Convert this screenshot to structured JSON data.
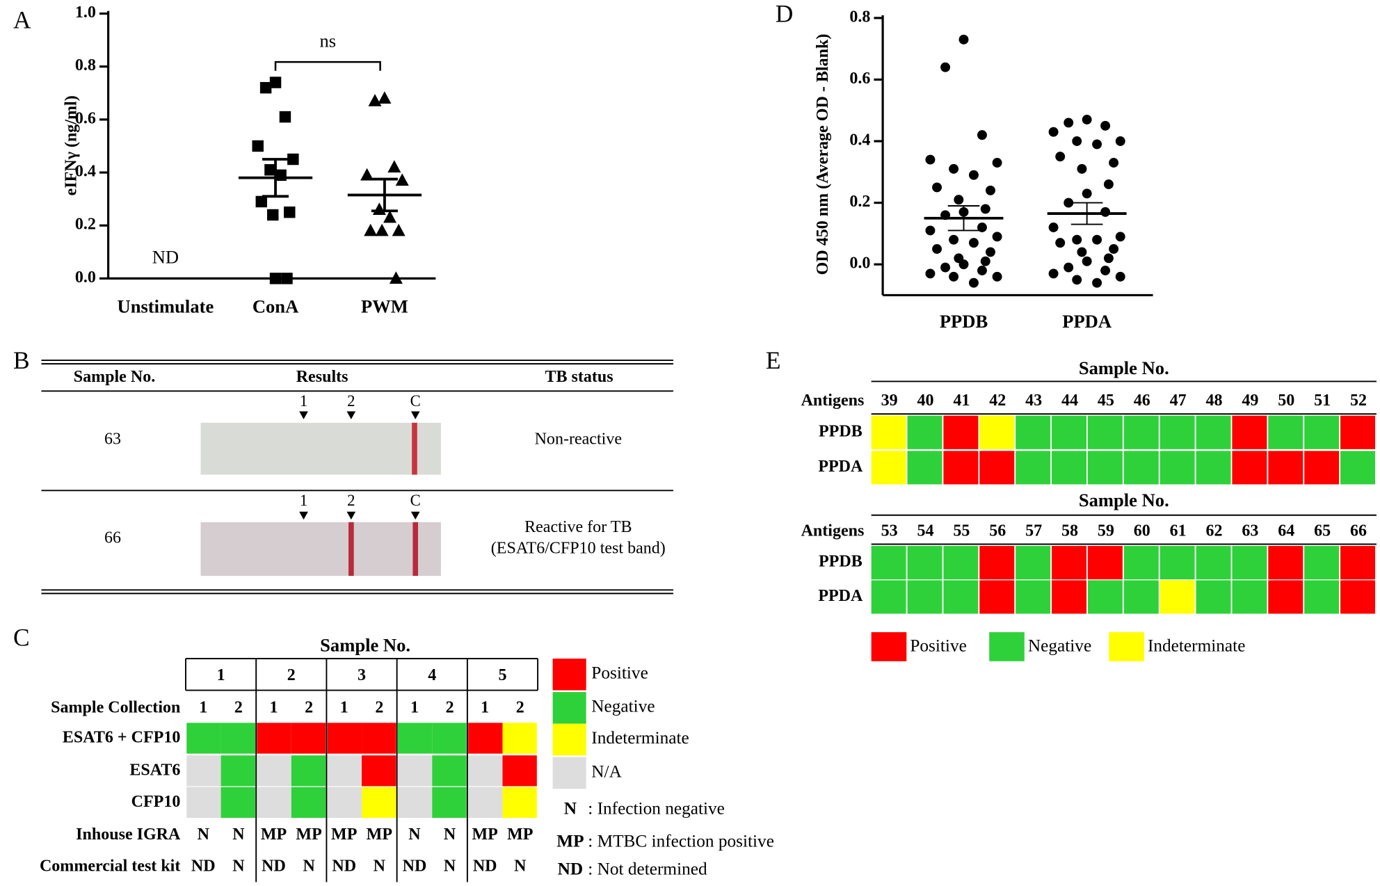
{
  "chart_data": [
    {
      "type": "scatter",
      "panel": "A",
      "y_label": "eIFNγ (ng/ml)",
      "categories": [
        "Unstimulate",
        "ConA",
        "PWM"
      ],
      "ylim": [
        0,
        1
      ],
      "yticks": [
        {
          "value": 0,
          "label": "0.0"
        },
        0.2,
        0.4,
        0.6,
        {
          "value": 0.8,
          "label": "0.8"
        },
        {
          "value": 1,
          "label": "1.0"
        }
      ],
      "series": [
        {
          "category": 1,
          "marker": "square",
          "color": "#000000",
          "values": [
            0.74,
            0.72,
            0.61,
            0.5,
            0.45,
            0.41,
            0.39,
            0.29,
            0.25,
            0.24,
            0,
            0
          ],
          "mean": 0.38,
          "sem": 0.07
        },
        {
          "category": 2,
          "marker": "triangle",
          "color": "#000000",
          "values": [
            0.68,
            0.67,
            0.42,
            0.39,
            0.37,
            0.26,
            0.23,
            0.18,
            0.18,
            0.18,
            0
          ],
          "mean": 0.315,
          "sem": 0.06
        }
      ],
      "annotations": [
        {
          "text": "ND",
          "category": 0
        }
      ],
      "significance": {
        "text": "ns",
        "from": 1,
        "to": 2
      }
    },
    {
      "type": "scatter",
      "panel": "D",
      "y_label": "OD 450 nm (Average OD - Blank)",
      "categories": [
        "PPDB",
        "PPDA"
      ],
      "ylim": [
        -0.1,
        0.8
      ],
      "yticks": [
        {
          "value": 0,
          "label": "0.0"
        },
        0.2,
        0.4,
        0.6,
        0.8
      ],
      "series": [
        {
          "category": 0,
          "marker": "circle",
          "color": "#000000",
          "values": [
            0.73,
            0.64,
            0.42,
            0.34,
            0.33,
            0.31,
            0.29,
            0.25,
            0.24,
            0.21,
            0.18,
            0.17,
            0.16,
            0.12,
            0.11,
            0.09,
            0.08,
            0.07,
            0.05,
            0.04,
            0.02,
            0.01,
            0,
            -0.01,
            -0.02,
            -0.03,
            -0.04,
            -0.04,
            -0.06
          ],
          "mean": 0.15,
          "sem": 0.04
        },
        {
          "category": 1,
          "marker": "circle",
          "color": "#000000",
          "values": [
            0.47,
            0.46,
            0.45,
            0.43,
            0.4,
            0.4,
            0.39,
            0.35,
            0.33,
            0.31,
            0.26,
            0.23,
            0.2,
            0.17,
            0.12,
            0.09,
            0.08,
            0.08,
            0.07,
            0.05,
            0.04,
            0.02,
            0.01,
            -0.01,
            -0.02,
            -0.03,
            -0.04,
            -0.05,
            -0.06
          ],
          "mean": 0.165,
          "sem": 0.035
        }
      ]
    }
  ],
  "panel_b": {
    "panel": "B",
    "headers": [
      "Sample No.",
      "Results",
      "TB status"
    ],
    "markers": [
      "1",
      "2",
      "C"
    ],
    "rows": [
      {
        "sample": 63,
        "status": [
          "Non-reactive"
        ]
      },
      {
        "sample": 66,
        "status": [
          "Reactive for TB",
          "(ESAT6/CFP10 test band)"
        ]
      }
    ]
  },
  "panel_c": {
    "panel": "C",
    "title": "Sample No.",
    "samples": [
      1,
      2,
      3,
      4,
      5
    ],
    "collection_label": "Sample Collection",
    "collections": [
      1,
      2
    ],
    "rows": [
      {
        "label": "ESAT6 + CFP10",
        "cells": [
          "#2fd13a",
          "#2fd13a",
          "#ff0000",
          "#ff0000",
          "#ff0000",
          "#ff0000",
          "#2fd13a",
          "#2fd13a",
          "#ff0000",
          "#ffff00"
        ]
      },
      {
        "label": "ESAT6",
        "cells": [
          "#dddddd",
          "#2fd13a",
          "#dddddd",
          "#2fd13a",
          "#dddddd",
          "#ff0000",
          "#dddddd",
          "#2fd13a",
          "#dddddd",
          "#ff0000"
        ]
      },
      {
        "label": "CFP10",
        "cells": [
          "#dddddd",
          "#2fd13a",
          "#dddddd",
          "#2fd13a",
          "#dddddd",
          "#ffff00",
          "#dddddd",
          "#2fd13a",
          "#dddddd",
          "#ffff00"
        ]
      }
    ],
    "text_rows": [
      {
        "label": "Inhouse IGRA",
        "cells": [
          "N",
          "N",
          "MP",
          "MP",
          "MP",
          "MP",
          "N",
          "N",
          "MP",
          "MP"
        ]
      },
      {
        "label": "Commercial test kit",
        "cells": [
          "ND",
          "N",
          "ND",
          "N",
          "ND",
          "N",
          "ND",
          "N",
          "ND",
          "N"
        ]
      }
    ],
    "legend": [
      {
        "label": "Positive",
        "color": "#ff0000"
      },
      {
        "label": "Negative",
        "color": "#2fd13a"
      },
      {
        "label": "Indeterminate",
        "color": "#ffff00"
      },
      {
        "label": "N/A",
        "color": "#dddddd"
      }
    ],
    "key": [
      {
        "symbol": "N",
        "text": ": Infection negative",
        "color": "#22b822"
      },
      {
        "symbol": "MP",
        "text": ": MTBC infection positive",
        "color": "#ee1111"
      },
      {
        "symbol": "ND",
        "text": ": Not determined",
        "color": "#000000"
      }
    ]
  },
  "panel_e": {
    "panel": "E",
    "blocks": [
      {
        "title": "Sample No.",
        "antigens_label": "Antigens",
        "samples": [
          39,
          40,
          41,
          42,
          43,
          44,
          45,
          46,
          47,
          48,
          49,
          50,
          51,
          52
        ],
        "rows": [
          {
            "label": "PPDB",
            "cells": [
              "#ffff00",
              "#2fd13a",
              "#ff0000",
              "#ffff00",
              "#2fd13a",
              "#2fd13a",
              "#2fd13a",
              "#2fd13a",
              "#2fd13a",
              "#2fd13a",
              "#ff0000",
              "#2fd13a",
              "#2fd13a",
              "#ff0000"
            ]
          },
          {
            "label": "PPDA",
            "cells": [
              "#ffff00",
              "#2fd13a",
              "#ff0000",
              "#ff0000",
              "#2fd13a",
              "#2fd13a",
              "#2fd13a",
              "#2fd13a",
              "#2fd13a",
              "#2fd13a",
              "#ff0000",
              "#ff0000",
              "#ff0000",
              "#2fd13a"
            ]
          }
        ]
      },
      {
        "title": "Sample No.",
        "antigens_label": "Antigens",
        "samples": [
          53,
          54,
          55,
          56,
          57,
          58,
          59,
          60,
          61,
          62,
          63,
          64,
          65,
          66
        ],
        "rows": [
          {
            "label": "PPDB",
            "cells": [
              "#2fd13a",
              "#2fd13a",
              "#2fd13a",
              "#ff0000",
              "#2fd13a",
              "#ff0000",
              "#ff0000",
              "#2fd13a",
              "#2fd13a",
              "#2fd13a",
              "#2fd13a",
              "#ff0000",
              "#2fd13a",
              "#ff0000"
            ]
          },
          {
            "label": "PPDA",
            "cells": [
              "#2fd13a",
              "#2fd13a",
              "#2fd13a",
              "#ff0000",
              "#2fd13a",
              "#ff0000",
              "#2fd13a",
              "#2fd13a",
              "#ffff00",
              "#2fd13a",
              "#2fd13a",
              "#ff0000",
              "#2fd13a",
              "#ff0000"
            ]
          }
        ]
      }
    ],
    "legend": [
      {
        "label": "Positive",
        "color": "#ff0000"
      },
      {
        "label": "Negative",
        "color": "#2fd13a"
      },
      {
        "label": "Indeterminate",
        "color": "#ffff00"
      }
    ]
  }
}
